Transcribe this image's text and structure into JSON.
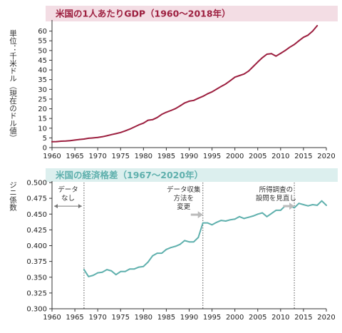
{
  "chart_data": [
    {
      "type": "line",
      "title": "米国の1人あたりGDP（1960〜2018年）",
      "ylabel": "単位：千米ドル（現在のドル値）",
      "xlabel": "",
      "xlim": [
        1960,
        2020
      ],
      "ylim": [
        0,
        65
      ],
      "xticks": [
        1960,
        1965,
        1970,
        1975,
        1980,
        1985,
        1990,
        1995,
        2000,
        2005,
        2010,
        2015,
        2020
      ],
      "yticks": [
        0,
        5,
        10,
        15,
        20,
        25,
        30,
        35,
        40,
        45,
        50,
        55,
        60
      ],
      "grid": false,
      "title_bg": "#f3dde4",
      "color": "#9c1f3f",
      "series": [
        {
          "x": [
            1960,
            1961,
            1962,
            1963,
            1964,
            1965,
            1966,
            1967,
            1968,
            1969,
            1970,
            1971,
            1972,
            1973,
            1974,
            1975,
            1976,
            1977,
            1978,
            1979,
            1980,
            1981,
            1982,
            1983,
            1984,
            1985,
            1986,
            1987,
            1988,
            1989,
            1990,
            1991,
            1992,
            1993,
            1994,
            1995,
            1996,
            1997,
            1998,
            1999,
            2000,
            2001,
            2002,
            2003,
            2004,
            2005,
            2006,
            2007,
            2008,
            2009,
            2010,
            2011,
            2012,
            2013,
            2014,
            2015,
            2016,
            2017,
            2018
          ],
          "values": [
            3.0,
            3.1,
            3.3,
            3.4,
            3.6,
            3.9,
            4.2,
            4.4,
            4.8,
            5.0,
            5.2,
            5.6,
            6.1,
            6.7,
            7.2,
            7.8,
            8.6,
            9.5,
            10.6,
            11.7,
            12.6,
            14.1,
            14.4,
            15.5,
            17.1,
            18.2,
            19.1,
            20.1,
            21.5,
            23.0,
            23.9,
            24.3,
            25.4,
            26.4,
            27.7,
            28.7,
            30.1,
            31.5,
            32.8,
            34.5,
            36.3,
            37.1,
            37.9,
            39.4,
            41.7,
            44.1,
            46.3,
            48.1,
            48.4,
            47.1,
            48.5,
            50.0,
            51.7,
            53.1,
            55.0,
            56.8,
            57.9,
            60.0,
            62.8
          ]
        }
      ]
    },
    {
      "type": "line",
      "title": "米国の経済格差（1967〜2020年）",
      "ylabel": "ジニ係数",
      "xlabel": "",
      "xlim": [
        1960,
        2020
      ],
      "ylim": [
        0.3,
        0.5
      ],
      "xticks": [
        1960,
        1965,
        1970,
        1975,
        1980,
        1985,
        1990,
        1995,
        2000,
        2005,
        2010,
        2015,
        2020
      ],
      "yticks": [
        0.3,
        0.325,
        0.35,
        0.375,
        0.4,
        0.425,
        0.45,
        0.475,
        0.5
      ],
      "ytick_labels": [
        "0.300",
        "0.325",
        "0.350",
        "0.375",
        "0.400",
        "0.425",
        "0.450",
        "0.475",
        "0.500"
      ],
      "grid": false,
      "title_bg": "#dcefee",
      "color": "#5fb0ad",
      "vlines": [
        1967,
        1993,
        2013
      ],
      "annotations": [
        {
          "text": [
            "データ",
            "なし"
          ],
          "x": 1963.5,
          "y": 0.492
        },
        {
          "text": [
            "データ収集",
            "方法を",
            "変更"
          ],
          "x": 1988.8,
          "y": 0.492
        },
        {
          "text": [
            "所得調査の",
            "設問を見直し"
          ],
          "x": 2009,
          "y": 0.492
        }
      ],
      "series": [
        {
          "x": [
            1967,
            1968,
            1969,
            1970,
            1971,
            1972,
            1973,
            1974,
            1975,
            1976,
            1977,
            1978,
            1979,
            1980,
            1981,
            1982,
            1983,
            1984,
            1985,
            1986,
            1987,
            1988,
            1989,
            1990,
            1991,
            1992,
            1993,
            1994,
            1995,
            1996,
            1997,
            1998,
            1999,
            2000,
            2001,
            2002,
            2003,
            2004,
            2005,
            2006,
            2007,
            2008,
            2009,
            2010,
            2011,
            2012,
            2013,
            2014,
            2015,
            2016,
            2017,
            2018,
            2019,
            2020
          ],
          "values": [
            0.362,
            0.351,
            0.353,
            0.357,
            0.358,
            0.362,
            0.36,
            0.354,
            0.359,
            0.359,
            0.363,
            0.363,
            0.366,
            0.367,
            0.374,
            0.384,
            0.388,
            0.388,
            0.394,
            0.397,
            0.399,
            0.402,
            0.408,
            0.406,
            0.406,
            0.413,
            0.436,
            0.436,
            0.433,
            0.437,
            0.44,
            0.439,
            0.441,
            0.442,
            0.446,
            0.443,
            0.445,
            0.447,
            0.45,
            0.452,
            0.446,
            0.451,
            0.456,
            0.456,
            0.463,
            0.463,
            0.46,
            0.467,
            0.465,
            0.463,
            0.465,
            0.464,
            0.471,
            0.464
          ]
        }
      ]
    }
  ]
}
